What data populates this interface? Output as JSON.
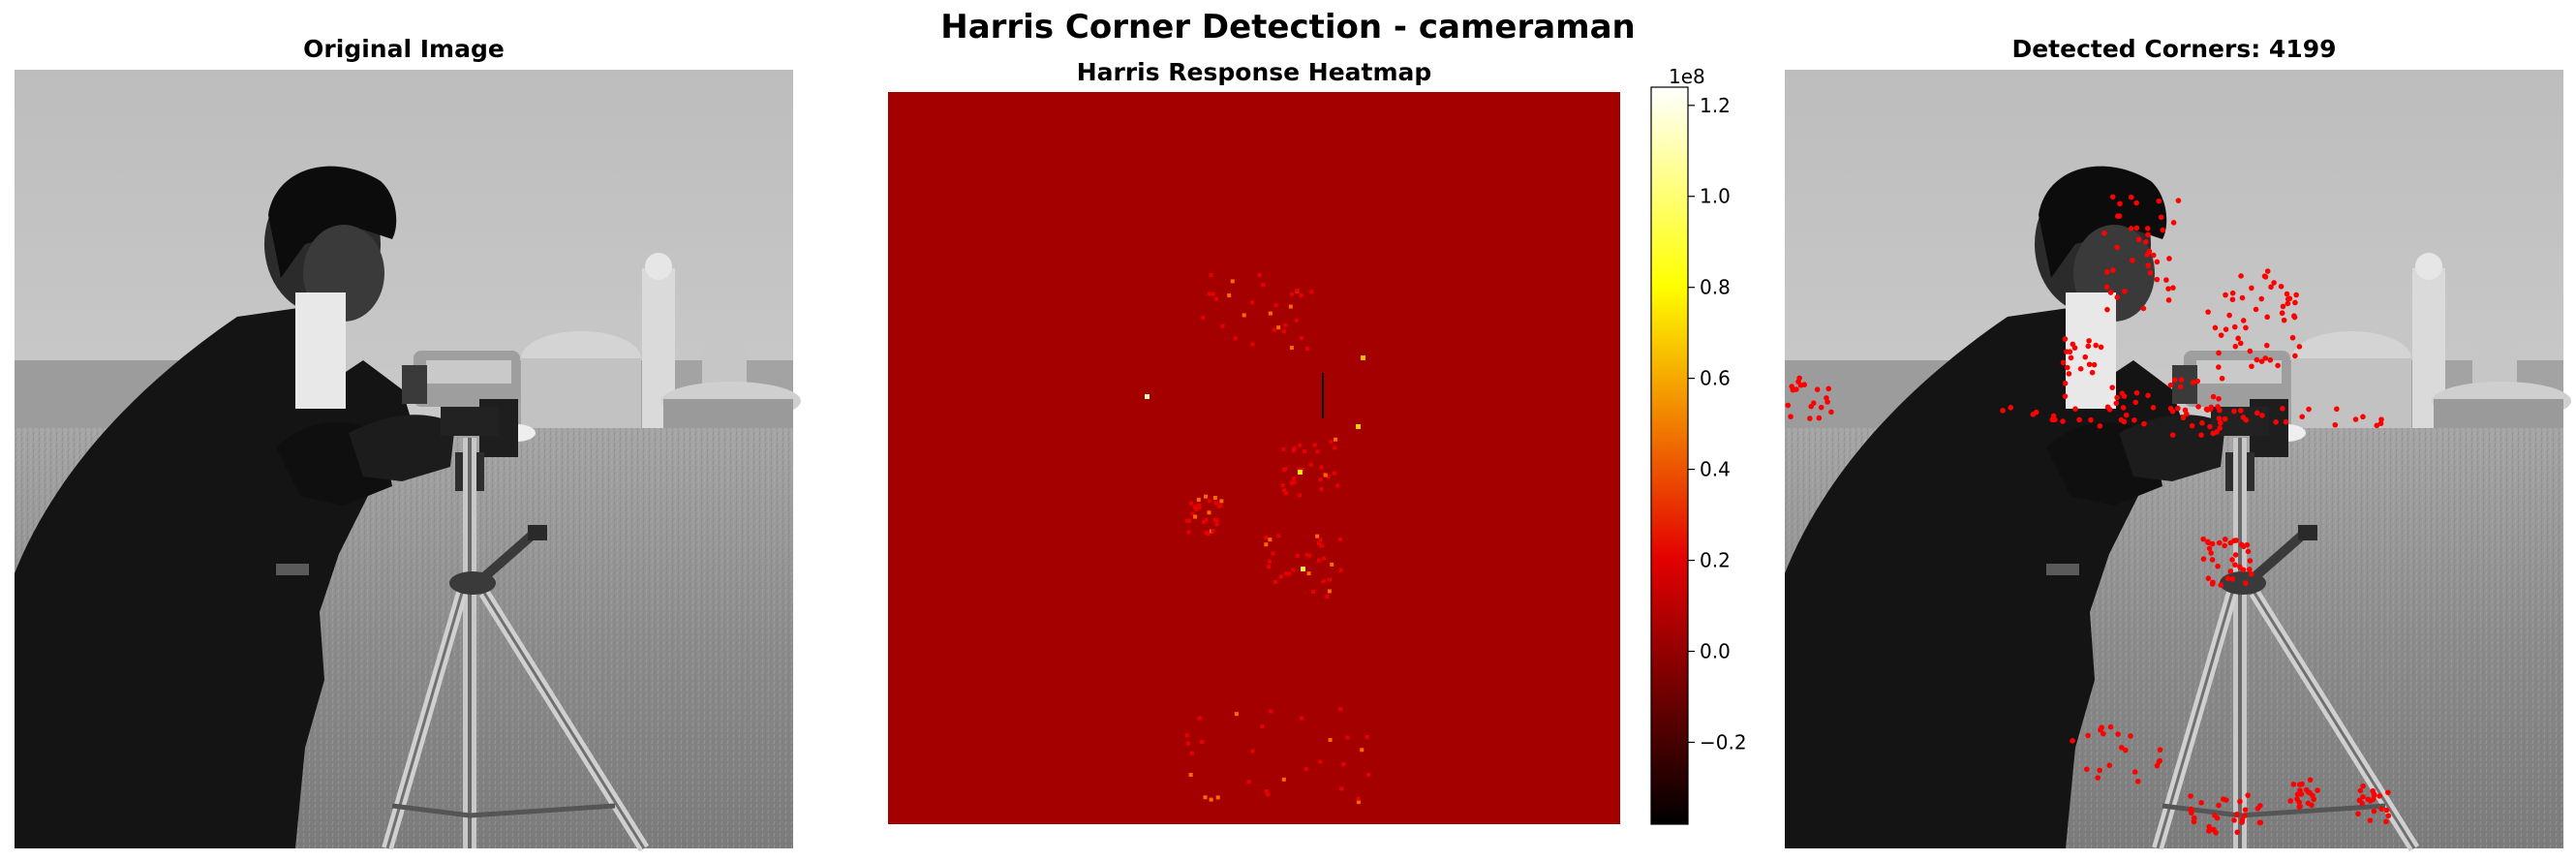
{
  "figure": {
    "title": "Harris Corner Detection - cameraman"
  },
  "colors": {
    "corner_marker": "#ff0000",
    "heatmap_background": "#a50000",
    "colormap": "hot"
  },
  "panels": [
    {
      "title": "Original Image",
      "kind": "image",
      "image": "cameraman-grayscale",
      "axis": "off"
    },
    {
      "title": "Harris Response Heatmap",
      "kind": "heatmap",
      "axis": "off"
    },
    {
      "title": "Detected Corners: 4199",
      "kind": "image-with-markers",
      "image": "cameraman-grayscale",
      "axis": "off"
    }
  ],
  "chart_data": {
    "type": "heatmap",
    "title": "Harris Response Heatmap",
    "colorbar": {
      "colormap": "hot",
      "offset_label": "1e8",
      "range": [
        -0.38,
        1.24
      ],
      "ticks": [
        -0.2,
        0.0,
        0.2,
        0.4,
        0.6,
        0.8,
        1.0,
        1.2
      ],
      "tick_labels": [
        "−0.2",
        "0.0",
        "0.2",
        "0.4",
        "0.6",
        "0.8",
        "1.0",
        "1.2"
      ]
    },
    "background_value": 0.0,
    "detected_corners": 4199
  }
}
